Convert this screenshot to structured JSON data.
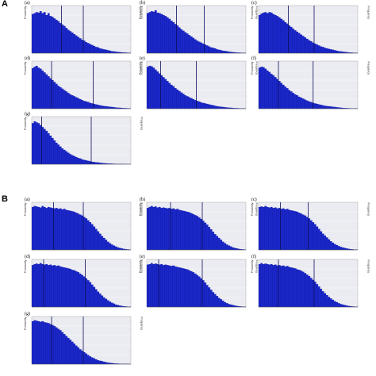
{
  "sections": [
    {
      "label": "A"
    },
    {
      "label": "B"
    }
  ],
  "colors": {
    "bar": "#1b27c8",
    "bar_edge": "#0d1690",
    "plot_bg": "#ebebf2",
    "grid": "#ffffff",
    "marker": "#0b0f5a"
  },
  "chart_data": [
    {
      "type": "bar",
      "panel": "A",
      "letter": "(a)",
      "title": "",
      "xlabel": "",
      "ylabel": "Probability",
      "y2label": "Frequency",
      "values": [
        0.82,
        0.84,
        0.86,
        0.85,
        0.88,
        0.84,
        0.86,
        0.8,
        0.84,
        0.78,
        0.76,
        0.73,
        0.7,
        0.67,
        0.63,
        0.6,
        0.57,
        0.53,
        0.49,
        0.46,
        0.43,
        0.4,
        0.37,
        0.34,
        0.31,
        0.28,
        0.26,
        0.23,
        0.21,
        0.19,
        0.17,
        0.15,
        0.13,
        0.12,
        0.1,
        0.09,
        0.08,
        0.07,
        0.06,
        0.05,
        0.04,
        0.035,
        0.03,
        0.025,
        0.02,
        0.016,
        0.013,
        0.01,
        0.008,
        0.006
      ],
      "markers": [
        0.3,
        0.52
      ],
      "ylim": [
        0,
        1
      ]
    },
    {
      "type": "bar",
      "panel": "A",
      "letter": "(b)",
      "title": "",
      "xlabel": "",
      "ylabel": "Probability",
      "y2label": "Frequency",
      "values": [
        0.84,
        0.86,
        0.88,
        0.87,
        0.9,
        0.85,
        0.84,
        0.82,
        0.8,
        0.78,
        0.75,
        0.72,
        0.68,
        0.65,
        0.61,
        0.58,
        0.54,
        0.5,
        0.47,
        0.44,
        0.41,
        0.38,
        0.35,
        0.32,
        0.29,
        0.26,
        0.24,
        0.22,
        0.2,
        0.18,
        0.16,
        0.14,
        0.12,
        0.11,
        0.1,
        0.08,
        0.07,
        0.06,
        0.05,
        0.045,
        0.04,
        0.03,
        0.025,
        0.02,
        0.016,
        0.012,
        0.01,
        0.008,
        0.006,
        0.004
      ],
      "markers": [
        0.3,
        0.58
      ],
      "ylim": [
        0,
        1
      ]
    },
    {
      "type": "bar",
      "panel": "A",
      "letter": "(c)",
      "title": "",
      "xlabel": "",
      "ylabel": "Probability",
      "y2label": "Frequency",
      "values": [
        0.8,
        0.83,
        0.85,
        0.86,
        0.84,
        0.86,
        0.85,
        0.82,
        0.8,
        0.78,
        0.75,
        0.72,
        0.69,
        0.65,
        0.62,
        0.58,
        0.55,
        0.51,
        0.48,
        0.45,
        0.42,
        0.39,
        0.36,
        0.33,
        0.3,
        0.27,
        0.25,
        0.22,
        0.2,
        0.18,
        0.16,
        0.14,
        0.13,
        0.11,
        0.1,
        0.09,
        0.08,
        0.07,
        0.06,
        0.05,
        0.04,
        0.035,
        0.03,
        0.025,
        0.02,
        0.015,
        0.012,
        0.009,
        0.007,
        0.005
      ],
      "markers": [
        0.3,
        0.56
      ],
      "ylim": [
        0,
        1
      ]
    },
    {
      "type": "bar",
      "panel": "A",
      "letter": "(d)",
      "title": "",
      "xlabel": "",
      "ylabel": "Probability",
      "y2label": "Frequency",
      "values": [
        0.85,
        0.88,
        0.9,
        0.86,
        0.84,
        0.8,
        0.76,
        0.72,
        0.68,
        0.64,
        0.6,
        0.56,
        0.52,
        0.48,
        0.45,
        0.42,
        0.39,
        0.36,
        0.33,
        0.3,
        0.28,
        0.26,
        0.24,
        0.22,
        0.2,
        0.18,
        0.16,
        0.15,
        0.14,
        0.12,
        0.11,
        0.1,
        0.09,
        0.08,
        0.07,
        0.06,
        0.055,
        0.05,
        0.045,
        0.04,
        0.035,
        0.03,
        0.025,
        0.02,
        0.018,
        0.015,
        0.012,
        0.01,
        0.008,
        0.006
      ],
      "markers": [
        0.2,
        0.62
      ],
      "ylim": [
        0,
        1
      ]
    },
    {
      "type": "bar",
      "panel": "A",
      "letter": "(e)",
      "title": "",
      "xlabel": "",
      "ylabel": "Probability",
      "y2label": "Frequency",
      "values": [
        0.88,
        0.9,
        0.89,
        0.86,
        0.82,
        0.78,
        0.74,
        0.7,
        0.66,
        0.62,
        0.58,
        0.54,
        0.5,
        0.47,
        0.43,
        0.4,
        0.37,
        0.34,
        0.31,
        0.28,
        0.26,
        0.24,
        0.22,
        0.2,
        0.18,
        0.16,
        0.15,
        0.13,
        0.12,
        0.11,
        0.1,
        0.09,
        0.08,
        0.07,
        0.06,
        0.05,
        0.045,
        0.04,
        0.035,
        0.03,
        0.025,
        0.02,
        0.018,
        0.015,
        0.012,
        0.01,
        0.008,
        0.006,
        0.005,
        0.004
      ],
      "markers": [
        0.14,
        0.5
      ],
      "ylim": [
        0,
        1
      ]
    },
    {
      "type": "bar",
      "panel": "A",
      "letter": "(f)",
      "title": "",
      "xlabel": "",
      "ylabel": "Probability",
      "y2label": "Frequency",
      "values": [
        0.86,
        0.88,
        0.87,
        0.84,
        0.8,
        0.77,
        0.73,
        0.7,
        0.66,
        0.62,
        0.58,
        0.54,
        0.5,
        0.46,
        0.43,
        0.39,
        0.36,
        0.33,
        0.3,
        0.28,
        0.25,
        0.23,
        0.21,
        0.19,
        0.17,
        0.15,
        0.14,
        0.12,
        0.11,
        0.1,
        0.09,
        0.08,
        0.07,
        0.06,
        0.055,
        0.05,
        0.045,
        0.04,
        0.035,
        0.03,
        0.025,
        0.02,
        0.016,
        0.013,
        0.01,
        0.008,
        0.006,
        0.005,
        0.004,
        0.003
      ],
      "markers": [
        0.2,
        0.55
      ],
      "ylim": [
        0,
        1
      ]
    },
    {
      "type": "bar",
      "panel": "A",
      "letter": "(g)",
      "title": "",
      "xlabel": "",
      "ylabel": "Probability",
      "y2label": "Frequency",
      "values": [
        0.86,
        0.9,
        0.88,
        0.86,
        0.82,
        0.78,
        0.74,
        0.7,
        0.65,
        0.6,
        0.55,
        0.5,
        0.45,
        0.41,
        0.37,
        0.33,
        0.3,
        0.27,
        0.24,
        0.21,
        0.19,
        0.17,
        0.15,
        0.13,
        0.12,
        0.1,
        0.09,
        0.08,
        0.07,
        0.06,
        0.05,
        0.045,
        0.04,
        0.035,
        0.03,
        0.025,
        0.02,
        0.017,
        0.014,
        0.012,
        0.01,
        0.008,
        0.006,
        0.005,
        0.004,
        0.003,
        0.002,
        0.002,
        0.001,
        0.001
      ],
      "markers": [
        0.1,
        0.6
      ],
      "ylim": [
        0,
        1
      ]
    },
    {
      "type": "bar",
      "panel": "B",
      "letter": "(a)",
      "title": "",
      "xlabel": "",
      "ylabel": "Probability",
      "y2label": "Frequency",
      "values": [
        0.9,
        0.92,
        0.91,
        0.9,
        0.89,
        0.92,
        0.9,
        0.88,
        0.9,
        0.89,
        0.88,
        0.87,
        0.88,
        0.86,
        0.87,
        0.85,
        0.86,
        0.84,
        0.83,
        0.82,
        0.81,
        0.8,
        0.78,
        0.76,
        0.74,
        0.72,
        0.69,
        0.66,
        0.62,
        0.58,
        0.54,
        0.49,
        0.44,
        0.39,
        0.34,
        0.29,
        0.25,
        0.21,
        0.17,
        0.14,
        0.11,
        0.09,
        0.07,
        0.05,
        0.04,
        0.03,
        0.02,
        0.015,
        0.01,
        0.006
      ],
      "markers": [
        0.22,
        0.52
      ],
      "ylim": [
        0,
        1
      ]
    },
    {
      "type": "bar",
      "panel": "B",
      "letter": "(b)",
      "title": "",
      "xlabel": "",
      "ylabel": "Probability",
      "y2label": "Frequency",
      "values": [
        0.88,
        0.9,
        0.92,
        0.9,
        0.91,
        0.89,
        0.9,
        0.88,
        0.89,
        0.88,
        0.87,
        0.88,
        0.86,
        0.87,
        0.85,
        0.86,
        0.84,
        0.83,
        0.82,
        0.81,
        0.8,
        0.79,
        0.77,
        0.75,
        0.73,
        0.71,
        0.68,
        0.65,
        0.61,
        0.57,
        0.53,
        0.48,
        0.43,
        0.38,
        0.33,
        0.29,
        0.25,
        0.21,
        0.17,
        0.14,
        0.11,
        0.09,
        0.07,
        0.05,
        0.04,
        0.03,
        0.02,
        0.015,
        0.01,
        0.006
      ],
      "markers": [
        0.24,
        0.56
      ],
      "ylim": [
        0,
        1
      ]
    },
    {
      "type": "bar",
      "panel": "B",
      "letter": "(c)",
      "title": "",
      "xlabel": "",
      "ylabel": "Probability",
      "y2label": "Frequency",
      "values": [
        0.9,
        0.91,
        0.9,
        0.92,
        0.9,
        0.89,
        0.9,
        0.88,
        0.89,
        0.87,
        0.88,
        0.86,
        0.87,
        0.85,
        0.86,
        0.84,
        0.83,
        0.82,
        0.81,
        0.8,
        0.78,
        0.76,
        0.74,
        0.72,
        0.69,
        0.66,
        0.62,
        0.58,
        0.54,
        0.49,
        0.44,
        0.39,
        0.34,
        0.3,
        0.26,
        0.22,
        0.18,
        0.15,
        0.12,
        0.1,
        0.08,
        0.06,
        0.05,
        0.04,
        0.03,
        0.02,
        0.015,
        0.01,
        0.007,
        0.005
      ],
      "markers": [
        0.22,
        0.5
      ],
      "ylim": [
        0,
        1
      ]
    },
    {
      "type": "bar",
      "panel": "B",
      "letter": "(d)",
      "title": "",
      "xlabel": "",
      "ylabel": "Probability",
      "y2label": "Frequency",
      "values": [
        0.88,
        0.9,
        0.91,
        0.9,
        0.92,
        0.9,
        0.89,
        0.9,
        0.88,
        0.89,
        0.87,
        0.88,
        0.86,
        0.87,
        0.85,
        0.84,
        0.83,
        0.82,
        0.81,
        0.8,
        0.78,
        0.77,
        0.75,
        0.73,
        0.7,
        0.67,
        0.64,
        0.6,
        0.56,
        0.52,
        0.47,
        0.42,
        0.37,
        0.32,
        0.28,
        0.24,
        0.2,
        0.17,
        0.14,
        0.11,
        0.09,
        0.07,
        0.05,
        0.04,
        0.03,
        0.02,
        0.015,
        0.01,
        0.007,
        0.005
      ],
      "markers": [
        0.12,
        0.54
      ],
      "ylim": [
        0,
        1
      ]
    },
    {
      "type": "bar",
      "panel": "B",
      "letter": "(e)",
      "title": "",
      "xlabel": "",
      "ylabel": "Probability",
      "y2label": "Frequency",
      "values": [
        0.89,
        0.9,
        0.92,
        0.9,
        0.91,
        0.9,
        0.89,
        0.9,
        0.88,
        0.89,
        0.88,
        0.87,
        0.86,
        0.87,
        0.85,
        0.84,
        0.83,
        0.82,
        0.81,
        0.8,
        0.79,
        0.77,
        0.75,
        0.73,
        0.7,
        0.67,
        0.64,
        0.6,
        0.56,
        0.51,
        0.46,
        0.41,
        0.36,
        0.31,
        0.27,
        0.23,
        0.19,
        0.16,
        0.13,
        0.1,
        0.08,
        0.06,
        0.05,
        0.04,
        0.03,
        0.02,
        0.015,
        0.01,
        0.007,
        0.005
      ],
      "markers": [
        0.12,
        0.56
      ],
      "ylim": [
        0,
        1
      ]
    },
    {
      "type": "bar",
      "panel": "B",
      "letter": "(f)",
      "title": "",
      "xlabel": "",
      "ylabel": "Probability",
      "y2label": "Frequency",
      "values": [
        0.9,
        0.92,
        0.9,
        0.91,
        0.9,
        0.89,
        0.9,
        0.88,
        0.89,
        0.87,
        0.88,
        0.86,
        0.87,
        0.85,
        0.86,
        0.84,
        0.83,
        0.82,
        0.81,
        0.79,
        0.78,
        0.76,
        0.74,
        0.71,
        0.68,
        0.65,
        0.61,
        0.57,
        0.53,
        0.48,
        0.43,
        0.38,
        0.33,
        0.29,
        0.25,
        0.21,
        0.18,
        0.15,
        0.12,
        0.1,
        0.08,
        0.06,
        0.05,
        0.04,
        0.03,
        0.02,
        0.015,
        0.01,
        0.007,
        0.005
      ],
      "markers": [
        0.2,
        0.56
      ],
      "ylim": [
        0,
        1
      ]
    },
    {
      "type": "bar",
      "panel": "B",
      "letter": "(g)",
      "title": "",
      "xlabel": "",
      "ylabel": "Probability",
      "y2label": "Frequency",
      "values": [
        0.9,
        0.92,
        0.91,
        0.9,
        0.89,
        0.9,
        0.88,
        0.87,
        0.86,
        0.84,
        0.82,
        0.8,
        0.77,
        0.74,
        0.71,
        0.67,
        0.63,
        0.59,
        0.55,
        0.51,
        0.47,
        0.43,
        0.39,
        0.35,
        0.31,
        0.28,
        0.25,
        0.22,
        0.19,
        0.16,
        0.14,
        0.12,
        0.1,
        0.08,
        0.07,
        0.06,
        0.05,
        0.04,
        0.03,
        0.025,
        0.02,
        0.015,
        0.012,
        0.009,
        0.007,
        0.005,
        0.004,
        0.003,
        0.002,
        0.001
      ],
      "markers": [
        0.2,
        0.52
      ],
      "ylim": [
        0,
        1
      ]
    }
  ]
}
